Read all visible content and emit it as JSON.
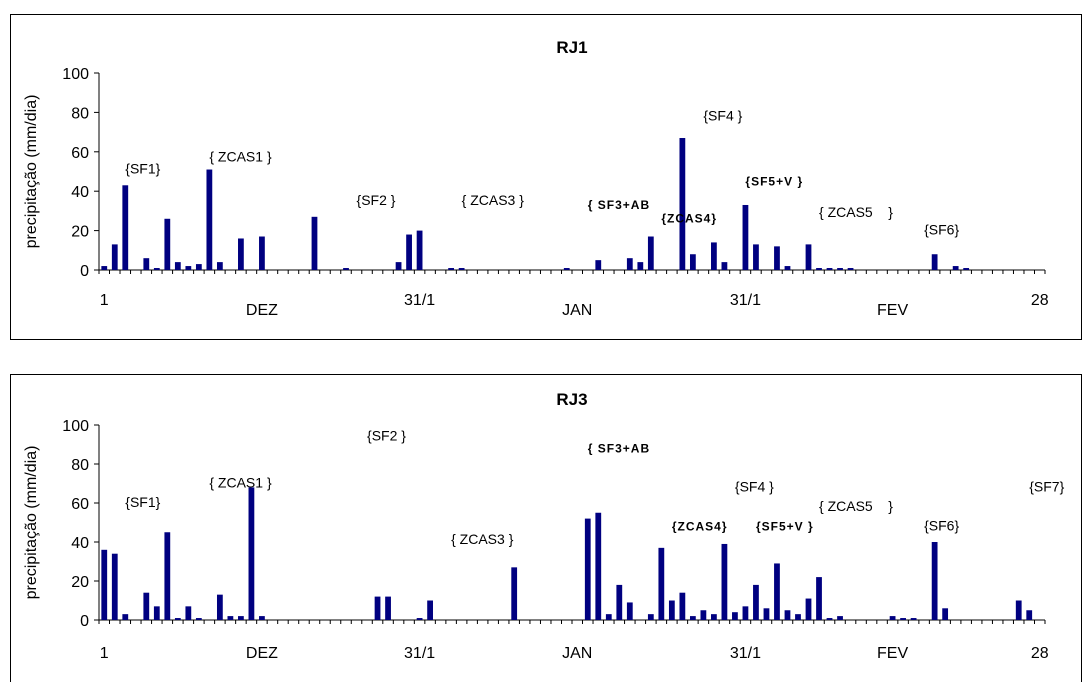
{
  "chart_data": [
    {
      "type": "bar",
      "title": "RJ1",
      "xlabel": "",
      "ylabel": "precipitação (mm/dia)",
      "ylim": [
        0,
        100
      ],
      "yticks": [
        0,
        20,
        40,
        60,
        80,
        100
      ],
      "grid": false,
      "color": "#000080",
      "x_tick_labels": [
        {
          "day": 1,
          "label": "1"
        },
        {
          "day": 31,
          "label": "31/1"
        },
        {
          "day": 62,
          "label": "31/1"
        },
        {
          "day": 90,
          "label": "28"
        }
      ],
      "month_labels": [
        {
          "day": 16,
          "label": "DEZ"
        },
        {
          "day": 46,
          "label": "JAN"
        },
        {
          "day": 76,
          "label": "FEV"
        }
      ],
      "annotations": [
        {
          "day": 3,
          "y": 49,
          "text": "{SF1}",
          "bold": false
        },
        {
          "day": 11,
          "y": 55,
          "text": "{ ZCAS1 }",
          "bold": false
        },
        {
          "day": 25,
          "y": 33,
          "text": "{SF2 }",
          "bold": false
        },
        {
          "day": 35,
          "y": 33,
          "text": "{ ZCAS3 }",
          "bold": false
        },
        {
          "day": 47,
          "y": 31,
          "text": "{ SF3+AB",
          "bold": true
        },
        {
          "day": 54,
          "y": 24,
          "text": "{ZCAS4}",
          "bold": true
        },
        {
          "day": 58,
          "y": 76,
          "text": "{SF4 }",
          "bold": false
        },
        {
          "day": 62,
          "y": 43,
          "text": "{SF5+V }",
          "bold": true
        },
        {
          "day": 69,
          "y": 27,
          "text": "{ ZCAS5    }",
          "bold": false
        },
        {
          "day": 79,
          "y": 18,
          "text": "{SF6}",
          "bold": false
        }
      ],
      "x": [
        1,
        2,
        3,
        5,
        6,
        7,
        8,
        9,
        10,
        11,
        12,
        14,
        16,
        21,
        24,
        29,
        30,
        31,
        34,
        35,
        45,
        48,
        51,
        52,
        53,
        56,
        57,
        59,
        60,
        62,
        63,
        65,
        66,
        68,
        69,
        70,
        71,
        72,
        80,
        82,
        83
      ],
      "values": [
        2,
        13,
        43,
        6,
        1,
        26,
        4,
        2,
        3,
        51,
        4,
        16,
        17,
        27,
        1,
        4,
        18,
        20,
        1,
        1,
        1,
        5,
        6,
        4,
        17,
        67,
        8,
        14,
        4,
        33,
        13,
        12,
        2,
        13,
        1,
        1,
        1,
        1,
        8,
        2,
        1
      ]
    },
    {
      "type": "bar",
      "title": "RJ3",
      "xlabel": "",
      "ylabel": "precipitação (mm/dia)",
      "ylim": [
        0,
        100
      ],
      "yticks": [
        0,
        20,
        40,
        60,
        80,
        100
      ],
      "grid": false,
      "color": "#000080",
      "x_tick_labels": [
        {
          "day": 1,
          "label": "1"
        },
        {
          "day": 31,
          "label": "31/1"
        },
        {
          "day": 62,
          "label": "31/1"
        },
        {
          "day": 90,
          "label": "28"
        }
      ],
      "month_labels": [
        {
          "day": 16,
          "label": "DEZ"
        },
        {
          "day": 46,
          "label": "JAN"
        },
        {
          "day": 76,
          "label": "FEV"
        }
      ],
      "annotations": [
        {
          "day": 3,
          "y": 58,
          "text": "{SF1}",
          "bold": false
        },
        {
          "day": 11,
          "y": 68,
          "text": "{ ZCAS1 }",
          "bold": false
        },
        {
          "day": 26,
          "y": 92,
          "text": "{SF2 }",
          "bold": false
        },
        {
          "day": 34,
          "y": 39,
          "text": "{ ZCAS3 }",
          "bold": false
        },
        {
          "day": 47,
          "y": 86,
          "text": "{ SF3+AB",
          "bold": true
        },
        {
          "day": 55,
          "y": 46,
          "text": "{ZCAS4}",
          "bold": true
        },
        {
          "day": 61,
          "y": 66,
          "text": "{SF4 }",
          "bold": false
        },
        {
          "day": 63,
          "y": 46,
          "text": "{SF5+V }",
          "bold": true
        },
        {
          "day": 69,
          "y": 56,
          "text": "{ ZCAS5    }",
          "bold": false
        },
        {
          "day": 79,
          "y": 46,
          "text": "{SF6}",
          "bold": false
        },
        {
          "day": 89,
          "y": 66,
          "text": "{SF7}",
          "bold": false
        }
      ],
      "x": [
        1,
        2,
        3,
        5,
        6,
        7,
        8,
        9,
        10,
        12,
        13,
        14,
        15,
        16,
        27,
        28,
        31,
        32,
        40,
        47,
        48,
        49,
        50,
        51,
        53,
        54,
        55,
        56,
        57,
        58,
        59,
        60,
        61,
        62,
        63,
        64,
        65,
        66,
        67,
        68,
        69,
        70,
        71,
        76,
        77,
        78,
        80,
        81,
        88,
        89
      ],
      "values": [
        36,
        34,
        3,
        14,
        7,
        45,
        1,
        7,
        1,
        13,
        2,
        2,
        68,
        2,
        12,
        12,
        1,
        10,
        27,
        52,
        55,
        3,
        18,
        9,
        3,
        37,
        10,
        14,
        2,
        5,
        3,
        39,
        4,
        7,
        18,
        6,
        29,
        5,
        3,
        11,
        22,
        1,
        2,
        2,
        1,
        1,
        40,
        6,
        10,
        5
      ]
    }
  ]
}
